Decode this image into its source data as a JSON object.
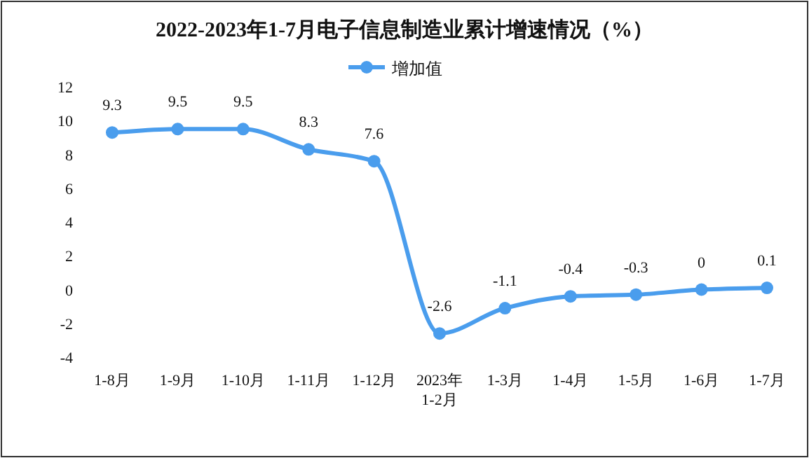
{
  "chart_data": {
    "type": "line",
    "title": "2022-2023年1-7月电子信息制造业累计增速情况（%）",
    "categories": [
      "1-8月",
      "1-9月",
      "1-10月",
      "1-11月",
      "1-12月",
      "2023年\n1-2月",
      "1-3月",
      "1-4月",
      "1-5月",
      "1-6月",
      "1-7月"
    ],
    "series": [
      {
        "name": "增加值",
        "color": "#4a9ded",
        "values": [
          9.3,
          9.5,
          9.5,
          8.3,
          7.6,
          -2.6,
          -1.1,
          -0.4,
          -0.3,
          0,
          0.1
        ]
      }
    ],
    "ylim": [
      -4,
      12
    ],
    "yticks": [
      -4,
      -2,
      0,
      2,
      4,
      6,
      8,
      10,
      12
    ],
    "grid": false,
    "legend": "top",
    "marker": "circle",
    "line_style": "solid",
    "data_labels": true
  }
}
